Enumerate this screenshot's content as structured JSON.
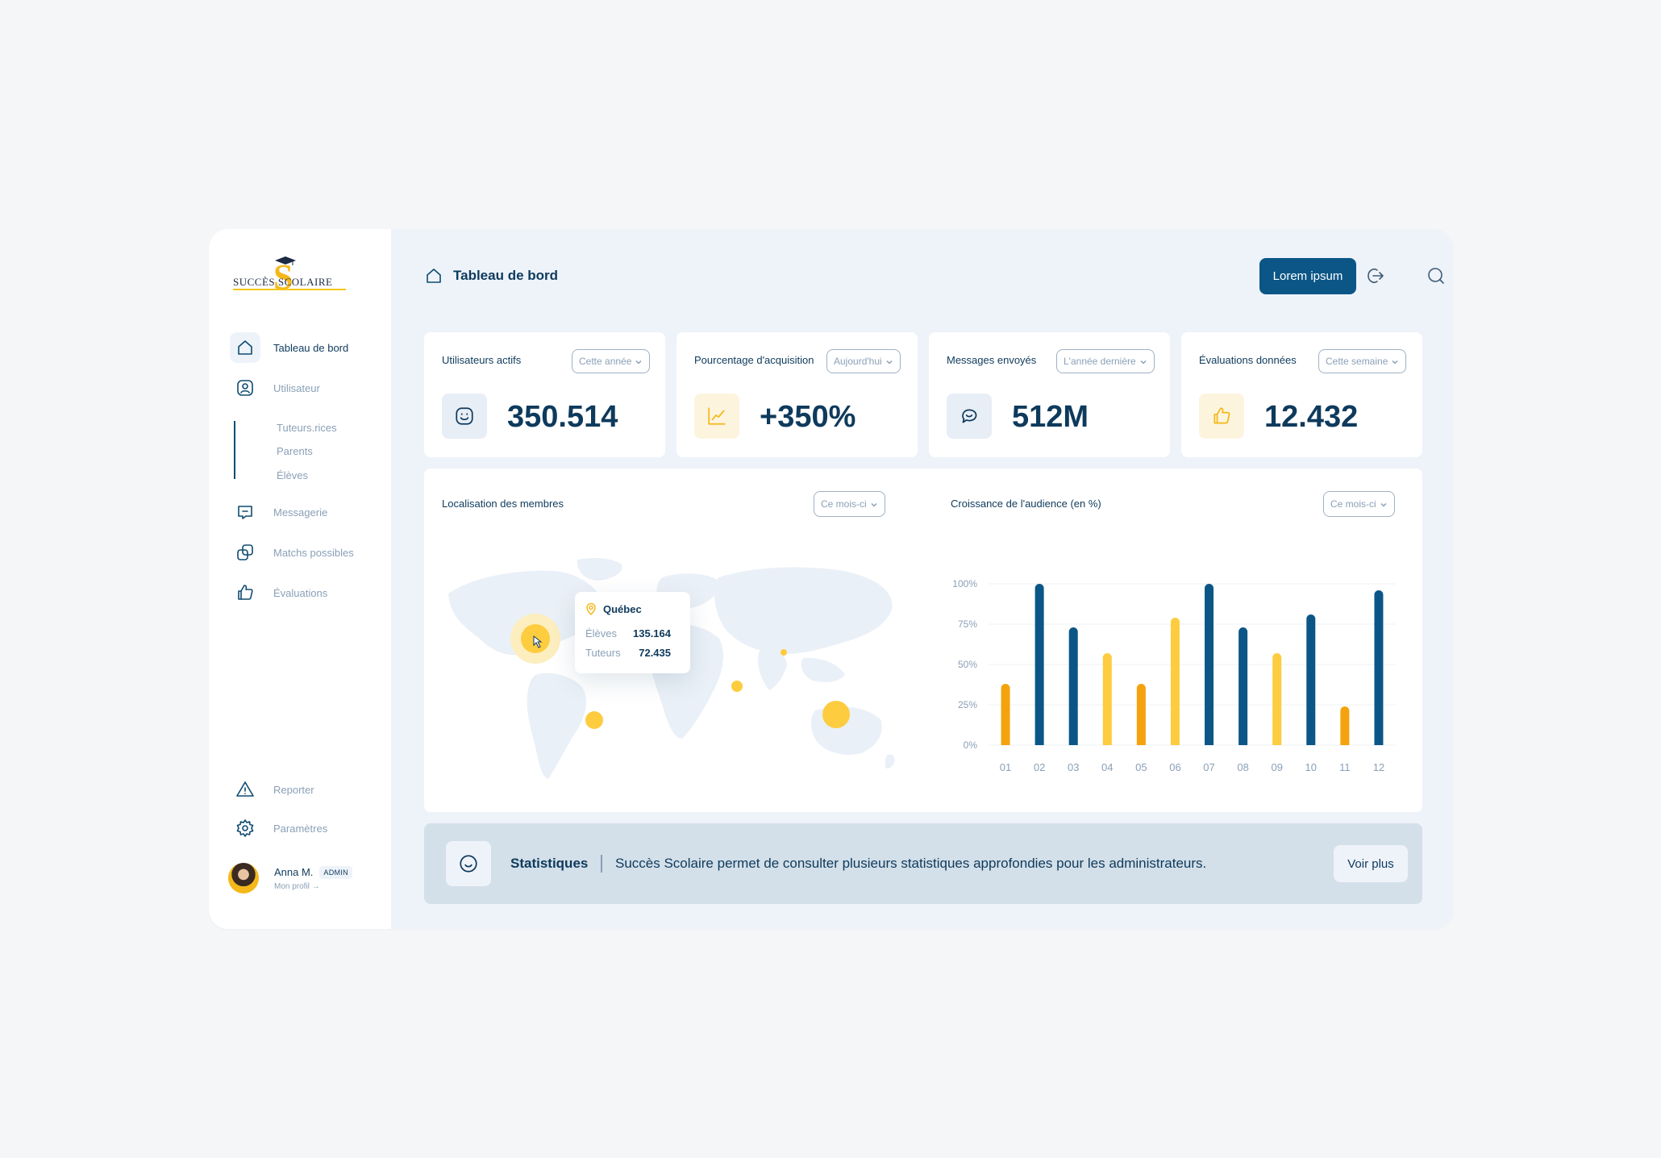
{
  "brand": {
    "logo_text": "SUCCÈS SCOLAIRE",
    "logo_letter": "S"
  },
  "sidebar": {
    "items": [
      {
        "label": "Tableau de bord",
        "icon": "home-icon"
      },
      {
        "label": "Utilisateur",
        "icon": "user-icon"
      },
      {
        "label": "Messagerie",
        "icon": "message-icon"
      },
      {
        "label": "Matchs possibles",
        "icon": "match-icon"
      },
      {
        "label": "Évaluations",
        "icon": "thumbs-up-icon"
      }
    ],
    "sub_items": [
      "Tuteurs.rices",
      "Parents",
      "Élèves"
    ],
    "bottom_items": [
      {
        "label": "Reporter",
        "icon": "warning-icon"
      },
      {
        "label": "Paramètres",
        "icon": "gear-icon"
      }
    ],
    "profile": {
      "name": "Anna M.",
      "badge": "ADMIN",
      "link": "Mon profil →"
    }
  },
  "header": {
    "title": "Tableau de bord",
    "cta_label": "Lorem ipsum"
  },
  "stats": [
    {
      "title": "Utilisateurs actifs",
      "filter": "Cette année",
      "value": "350.514",
      "icon": "smiley-icon"
    },
    {
      "title": "Pourcentage d'acquisition",
      "filter": "Aujourd'hui",
      "value": "+350%",
      "icon": "chart-icon"
    },
    {
      "title": "Messages envoyés",
      "filter": "L'année dernière",
      "value": "512M",
      "icon": "chat-icon"
    },
    {
      "title": "Évaluations données",
      "filter": "Cette semaine",
      "value": "12.432",
      "icon": "thumbs-up-icon"
    }
  ],
  "map_panel": {
    "title": "Localisation des membres",
    "filter": "Ce mois-ci",
    "tooltip": {
      "location": "Québec",
      "rows": [
        {
          "label": "Élèves",
          "value": "135.164"
        },
        {
          "label": "Tuteurs",
          "value": "72.435"
        }
      ]
    }
  },
  "chart_panel": {
    "title": "Croissance de l'audience (en %)",
    "filter": "Ce mois-ci"
  },
  "chart_data": {
    "type": "bar",
    "categories": [
      "01",
      "02",
      "03",
      "04",
      "05",
      "06",
      "07",
      "08",
      "09",
      "10",
      "11",
      "12"
    ],
    "values": [
      38,
      100,
      73,
      57,
      38,
      79,
      100,
      73,
      57,
      81,
      24,
      96
    ],
    "ylim": [
      0,
      100
    ],
    "yticks": [
      "0%",
      "25%",
      "50%",
      "75%",
      "100%"
    ],
    "colors": [
      "#f4a20e",
      "#0b5686",
      "#0b5686",
      "#fdcc3f",
      "#f4a20e",
      "#fdcc3f",
      "#0b5686",
      "#0b5686",
      "#fdcc3f",
      "#0b5686",
      "#f4a20e",
      "#0b5686"
    ],
    "grid": true
  },
  "banner": {
    "title": "Statistiques",
    "text": "Succès Scolaire permet de consulter plusieurs statistiques approfondies pour les administrateurs.",
    "button": "Voir plus"
  },
  "colors": {
    "primary": "#0b5686",
    "accent": "#f4b81a",
    "background": "#eef3fa"
  }
}
